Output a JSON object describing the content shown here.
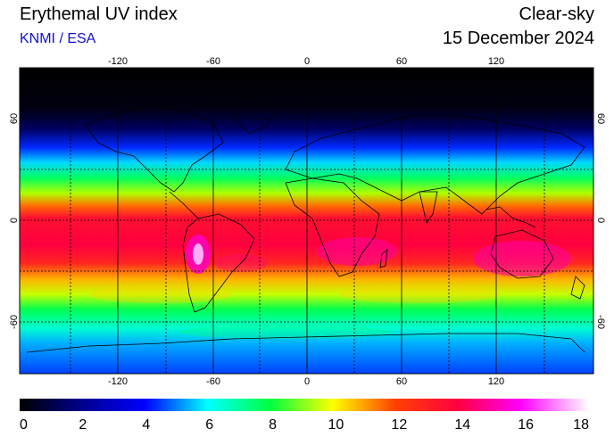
{
  "header": {
    "title": "Erythemal UV index",
    "subtitle": "KNMI / ESA",
    "mode": "Clear-sky",
    "date": "15 December 2024"
  },
  "map": {
    "lon_ticks": [
      "-120",
      "-60",
      "0",
      "60",
      "120"
    ],
    "lat_ticks": [
      "60",
      "0",
      "-60"
    ]
  },
  "colorbar": {
    "labels": [
      "0",
      "2",
      "4",
      "6",
      "8",
      "10",
      "12",
      "14",
      "16",
      "18"
    ],
    "min": 0,
    "max": 18
  },
  "colors": {
    "subtitle": "#1010d0"
  }
}
